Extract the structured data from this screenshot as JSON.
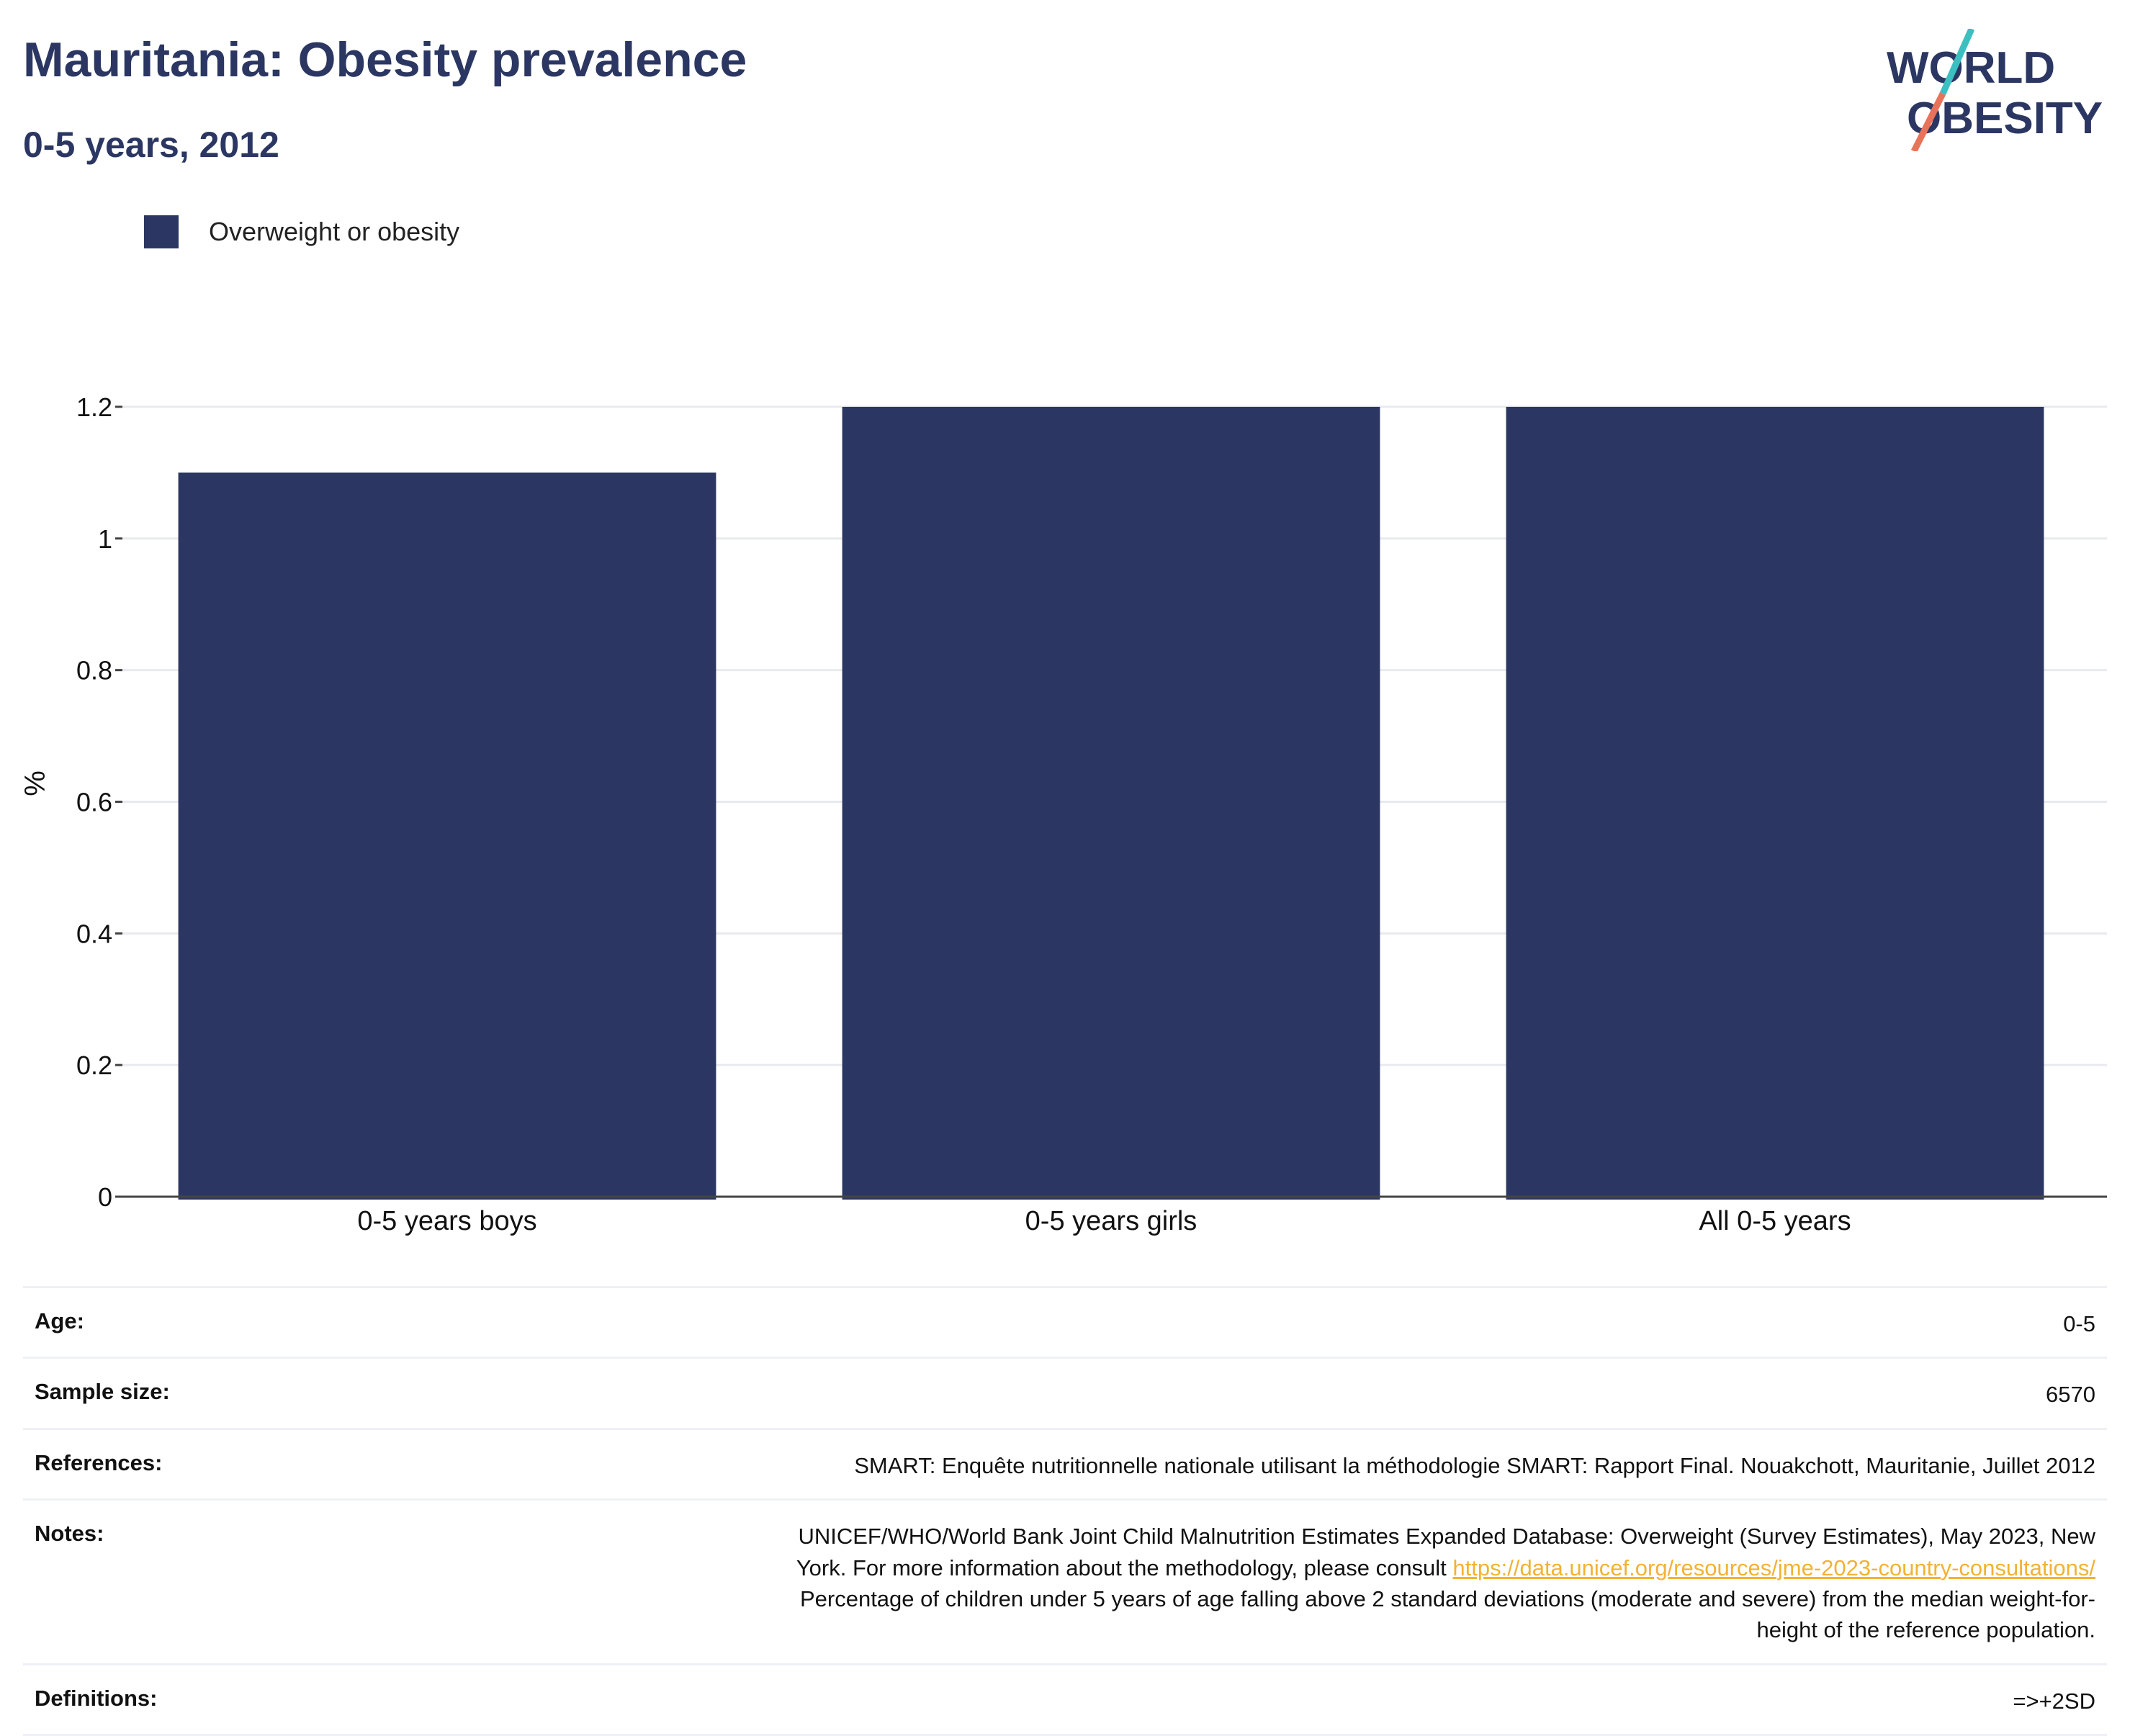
{
  "header": {
    "title": "Mauritania: Obesity prevalence",
    "subtitle": "0-5 years, 2012"
  },
  "logo": {
    "line1": "WORLD",
    "line2": "OBESITY",
    "colors": {
      "text": "#2b3762",
      "slash_top": "#3bbfc0",
      "slash_bottom": "#e8735a"
    }
  },
  "legend": {
    "label": "Overweight or obesity",
    "color": "#2b3762"
  },
  "chart_data": {
    "type": "bar",
    "categories": [
      "0-5 years boys",
      "0-5 years girls",
      "All 0-5 years"
    ],
    "series": [
      {
        "name": "Overweight or obesity",
        "values": [
          1.1,
          1.2,
          1.2
        ],
        "color": "#2b3762"
      }
    ],
    "title": "Mauritania: Obesity prevalence",
    "subtitle": "0-5 years, 2012",
    "xlabel": "",
    "ylabel": "%",
    "ylim": [
      0,
      1.2
    ],
    "yticks": [
      0,
      0.2,
      0.4,
      0.6,
      0.8,
      1,
      1.2
    ],
    "ytick_labels": [
      "0",
      "0.2",
      "0.4",
      "0.6",
      "0.8",
      "1",
      "1.2"
    ],
    "grid": true,
    "legend_position": "top-left"
  },
  "meta": {
    "age": {
      "label": "Age:",
      "value": "0-5"
    },
    "sample_size": {
      "label": "Sample size:",
      "value": "6570"
    },
    "references": {
      "label": "References:",
      "value": "SMART: Enquête nutritionnelle nationale utilisant la méthodologie SMART: Rapport Final. Nouakchott, Mauritanie, Juillet 2012"
    },
    "notes": {
      "label": "Notes:",
      "line1": "UNICEF/WHO/World Bank Joint Child Malnutrition Estimates Expanded Database: Overweight (Survey Estimates), May 2023, New",
      "line2_prefix": "York. For more information about the methodology, please consult",
      "link": "https://data.unicef.org/resources/jme-2023-country-consultations/",
      "line3": "Percentage of children under 5 years of age falling above 2 standard deviations (moderate and severe) from the median weight-for-",
      "line4": "height of the reference population."
    },
    "definitions": {
      "label": "Definitions:",
      "value": "=>+2SD"
    }
  }
}
